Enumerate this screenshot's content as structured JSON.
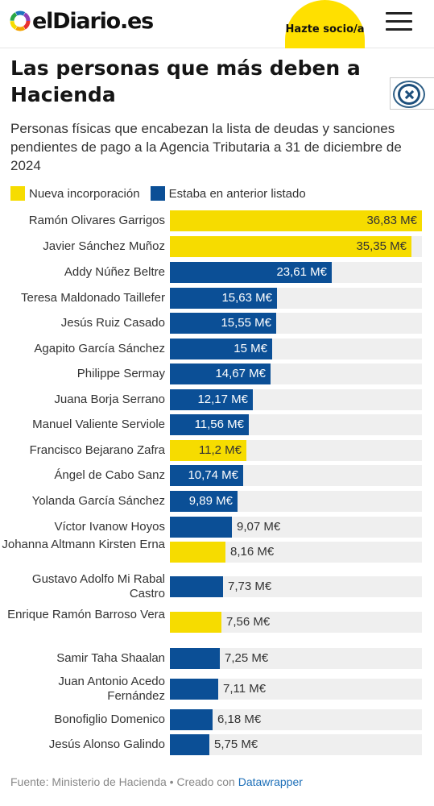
{
  "header": {
    "logo_text": "elDiario.es",
    "cta_label": "Hazte socio/a",
    "icons": [
      "logo-mark-icon",
      "hamburger-menu-icon",
      "close-icon"
    ]
  },
  "article": {
    "title": "Las personas que más deben a Hacienda",
    "subtitle": "Personas físicas que encabezan la lista de deudas y sanciones pendientes de pago a la Agencia Tributaria a 31 de diciembre de 2024"
  },
  "legend": [
    {
      "label": "Nueva incorporación",
      "color": "#f6dc00"
    },
    {
      "label": "Estaba en anterior listado",
      "color": "#0b4f96"
    }
  ],
  "chart_data": {
    "type": "bar",
    "orientation": "horizontal",
    "unit": "M€",
    "xlim": [
      0,
      36.83
    ],
    "categories": [
      "Ramón Olivares Garrigos",
      "Javier Sánchez Muñoz",
      "Addy Núñez Beltre",
      "Teresa Maldonado Taillefer",
      "Jesús Ruiz Casado",
      "Agapito García Sánchez",
      "Philippe Sermay",
      "Juana Borja Serrano",
      "Manuel Valiente Serviole",
      "Francisco Bejarano Zafra",
      "Ángel de Cabo Sanz",
      "Yolanda García Sánchez",
      "Víctor Ivanow Hoyos",
      "Johanna Altmann Kirsten Erna",
      "Gustavo Adolfo Mi Rabal Castro",
      "Enrique Ramón Barroso Vera",
      "Samir Taha Shaalan",
      "Juan Antonio Acedo Fernández",
      "Bonofiglio Domenico",
      "Jesús Alonso Galindo"
    ],
    "values": [
      36.83,
      35.35,
      23.61,
      15.63,
      15.55,
      15,
      14.67,
      12.17,
      11.56,
      11.2,
      10.74,
      9.89,
      9.07,
      8.16,
      7.73,
      7.56,
      7.25,
      7.11,
      6.18,
      5.75
    ],
    "value_labels": [
      "36,83 M€",
      "35,35 M€",
      "23,61 M€",
      "15,63 M€",
      "15,55 M€",
      "15 M€",
      "14,67 M€",
      "12,17 M€",
      "11,56 M€",
      "11,2 M€",
      "10,74 M€",
      "9,89 M€",
      "9,07 M€",
      "8,16 M€",
      "7,73 M€",
      "7,56 M€",
      "7,25 M€",
      "7,11 M€",
      "6,18 M€",
      "5,75 M€"
    ],
    "groups": [
      "Nueva incorporación",
      "Nueva incorporación",
      "Estaba en anterior listado",
      "Estaba en anterior listado",
      "Estaba en anterior listado",
      "Estaba en anterior listado",
      "Estaba en anterior listado",
      "Estaba en anterior listado",
      "Estaba en anterior listado",
      "Nueva incorporación",
      "Estaba en anterior listado",
      "Estaba en anterior listado",
      "Estaba en anterior listado",
      "Nueva incorporación",
      "Estaba en anterior listado",
      "Nueva incorporación",
      "Estaba en anterior listado",
      "Estaba en anterior listado",
      "Estaba en anterior listado",
      "Estaba en anterior listado"
    ],
    "grid": false,
    "legend_position": "top-left"
  },
  "footer": {
    "source_prefix": "Fuente: Ministerio de Hacienda • Creado con ",
    "tool_link": "Datawrapper"
  }
}
